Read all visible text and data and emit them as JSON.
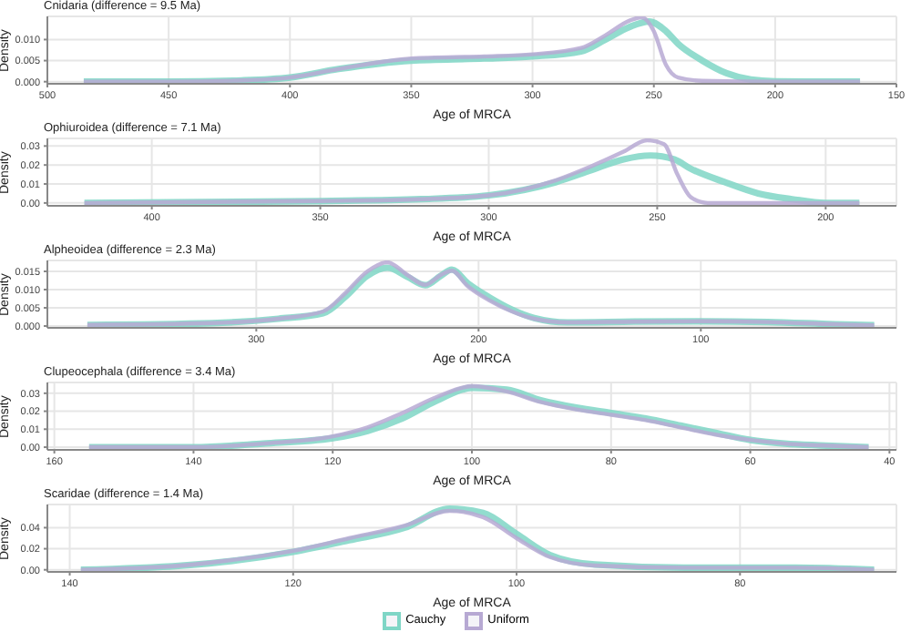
{
  "chart_data": [
    {
      "type": "line",
      "title": "Cnidaria (difference = 9.5 Ma)",
      "xlabel": "Age of MRCA",
      "ylabel": "Density",
      "xlim": [
        500,
        150
      ],
      "xticks": [
        500,
        450,
        400,
        350,
        300,
        250,
        200,
        150
      ],
      "ylim": [
        -0.0005,
        0.0155
      ],
      "yticks": [
        {
          "value": 0,
          "label": "0.000"
        },
        {
          "value": 0.005,
          "label": "0.005"
        },
        {
          "value": 0.01,
          "label": "0.010"
        }
      ],
      "grid": true,
      "marker": "none",
      "series": [
        {
          "color": "#7fd6c6",
          "x": [
            485,
            450,
            420,
            400,
            380,
            350,
            320,
            300,
            280,
            270,
            260,
            252,
            245,
            240,
            230,
            220,
            210,
            200,
            165
          ],
          "values": [
            0,
            0,
            0.0003,
            0.001,
            0.003,
            0.005,
            0.0055,
            0.006,
            0.0072,
            0.01,
            0.013,
            0.0143,
            0.012,
            0.009,
            0.005,
            0.002,
            0.0005,
            0.0001,
            0
          ]
        },
        {
          "color": "#b7a9d3",
          "x": [
            485,
            450,
            420,
            400,
            380,
            350,
            320,
            300,
            280,
            270,
            260,
            255,
            250,
            245,
            240,
            230,
            200,
            165
          ],
          "values": [
            0,
            0,
            0.0003,
            0.001,
            0.003,
            0.0055,
            0.006,
            0.0065,
            0.008,
            0.011,
            0.0145,
            0.0153,
            0.012,
            0.004,
            0.001,
            0.0002,
            0,
            0
          ]
        }
      ]
    },
    {
      "type": "line",
      "title": "Ophiuroidea (difference = 7.1 Ma)",
      "xlabel": "Age of MRCA",
      "ylabel": "Density",
      "xlim": [
        431,
        179
      ],
      "xticks": [
        400,
        350,
        300,
        250,
        200
      ],
      "ylim": [
        -0.0015,
        0.034
      ],
      "yticks": [
        {
          "value": 0,
          "label": "0.00"
        },
        {
          "value": 0.01,
          "label": "0.01"
        },
        {
          "value": 0.02,
          "label": "0.02"
        },
        {
          "value": 0.03,
          "label": "0.03"
        }
      ],
      "grid": true,
      "marker": "none",
      "series": [
        {
          "color": "#7fd6c6",
          "x": [
            420,
            350,
            320,
            300,
            280,
            270,
            260,
            252,
            245,
            240,
            230,
            220,
            210,
            200,
            190
          ],
          "values": [
            0,
            0.001,
            0.002,
            0.004,
            0.011,
            0.017,
            0.023,
            0.025,
            0.023,
            0.018,
            0.011,
            0.005,
            0.002,
            0,
            0
          ]
        },
        {
          "color": "#b7a9d3",
          "x": [
            420,
            350,
            320,
            300,
            290,
            280,
            270,
            260,
            253,
            248,
            244,
            240,
            235,
            190
          ],
          "values": [
            0,
            0.001,
            0.002,
            0.004,
            0.007,
            0.012,
            0.019,
            0.027,
            0.033,
            0.031,
            0.015,
            0.003,
            0,
            0
          ]
        }
      ]
    },
    {
      "type": "line",
      "title": "Alpheoidea (difference = 2.3 Ma)",
      "xlabel": "Age of MRCA",
      "ylabel": "Density",
      "xlim": [
        394,
        12
      ],
      "xticks": [
        300,
        200,
        100
      ],
      "ylim": [
        -0.0005,
        0.018
      ],
      "yticks": [
        {
          "value": 0,
          "label": "0.000"
        },
        {
          "value": 0.005,
          "label": "0.005"
        },
        {
          "value": 0.01,
          "label": "0.010"
        },
        {
          "value": 0.015,
          "label": "0.015"
        }
      ],
      "grid": true,
      "marker": "none",
      "series": [
        {
          "color": "#7fd6c6",
          "x": [
            376,
            320,
            290,
            270,
            260,
            250,
            241,
            232,
            224,
            217,
            212,
            205,
            195,
            185,
            175,
            160,
            130,
            100,
            70,
            40,
            22
          ],
          "values": [
            0.0003,
            0.0008,
            0.002,
            0.0035,
            0.008,
            0.0138,
            0.016,
            0.0135,
            0.0112,
            0.0138,
            0.0155,
            0.0118,
            0.0078,
            0.0045,
            0.0022,
            0.001,
            0.0012,
            0.0013,
            0.0011,
            0.0005,
            0.0002
          ]
        },
        {
          "color": "#b7a9d3",
          "x": [
            376,
            320,
            290,
            270,
            260,
            250,
            241,
            232,
            224,
            217,
            212,
            205,
            195,
            185,
            175,
            160,
            130,
            100,
            70,
            40,
            22
          ],
          "values": [
            0.0003,
            0.0008,
            0.002,
            0.004,
            0.009,
            0.015,
            0.0175,
            0.014,
            0.0113,
            0.014,
            0.0152,
            0.011,
            0.007,
            0.004,
            0.002,
            0.001,
            0.0012,
            0.0013,
            0.0011,
            0.0005,
            0.0002
          ]
        }
      ]
    },
    {
      "type": "line",
      "title": "Clupeocephala (difference = 3.4 Ma)",
      "xlabel": "Age of MRCA",
      "ylabel": "Density",
      "xlim": [
        161,
        39
      ],
      "xticks": [
        160,
        140,
        120,
        100,
        80,
        60,
        40
      ],
      "ylim": [
        -0.0015,
        0.036
      ],
      "yticks": [
        {
          "value": 0,
          "label": "0.00"
        },
        {
          "value": 0.01,
          "label": "0.01"
        },
        {
          "value": 0.02,
          "label": "0.02"
        },
        {
          "value": 0.03,
          "label": "0.03"
        }
      ],
      "grid": true,
      "marker": "none",
      "series": [
        {
          "color": "#7fd6c6",
          "x": [
            155,
            140,
            130,
            120,
            115,
            110,
            105,
            100,
            95,
            90,
            85,
            80,
            75,
            70,
            65,
            60,
            55,
            50,
            43
          ],
          "values": [
            0,
            0,
            0.002,
            0.005,
            0.009,
            0.016,
            0.026,
            0.033,
            0.032,
            0.026,
            0.022,
            0.019,
            0.016,
            0.012,
            0.008,
            0.004,
            0.002,
            0.001,
            0
          ]
        },
        {
          "color": "#b7a9d3",
          "x": [
            155,
            140,
            130,
            120,
            115,
            110,
            105,
            100,
            95,
            90,
            85,
            80,
            75,
            70,
            65,
            60,
            55,
            50,
            43
          ],
          "values": [
            0,
            0,
            0.002,
            0.006,
            0.011,
            0.019,
            0.028,
            0.034,
            0.031,
            0.025,
            0.021,
            0.018,
            0.015,
            0.011,
            0.007,
            0.004,
            0.002,
            0.001,
            0
          ]
        }
      ]
    },
    {
      "type": "line",
      "title": "Scaridae (difference = 1.4 Ma)",
      "xlabel": "Age of MRCA",
      "ylabel": "Density",
      "xlim": [
        142,
        66
      ],
      "xticks": [
        140,
        120,
        100,
        80
      ],
      "ylim": [
        -0.002,
        0.062
      ],
      "yticks": [
        {
          "value": 0,
          "label": "0.00"
        },
        {
          "value": 0.02,
          "label": "0.02"
        },
        {
          "value": 0.04,
          "label": "0.04"
        }
      ],
      "grid": true,
      "marker": "none",
      "legend": "bottom",
      "series": [
        {
          "name": "Cauchy",
          "color": "#7fd6c6",
          "x": [
            139,
            130,
            125,
            120,
            115,
            110,
            106,
            103,
            100,
            97,
            93,
            85,
            75,
            68
          ],
          "values": [
            0,
            0.004,
            0.009,
            0.017,
            0.028,
            0.04,
            0.058,
            0.054,
            0.034,
            0.014,
            0.005,
            0.002,
            0.002,
            0
          ]
        },
        {
          "name": "Uniform",
          "color": "#b7a9d3",
          "x": [
            139,
            130,
            125,
            120,
            115,
            110,
            106,
            103,
            100,
            97,
            93,
            85,
            75,
            68
          ],
          "values": [
            0,
            0.004,
            0.01,
            0.018,
            0.03,
            0.042,
            0.056,
            0.05,
            0.03,
            0.012,
            0.004,
            0.002,
            0.002,
            0
          ]
        }
      ]
    }
  ]
}
